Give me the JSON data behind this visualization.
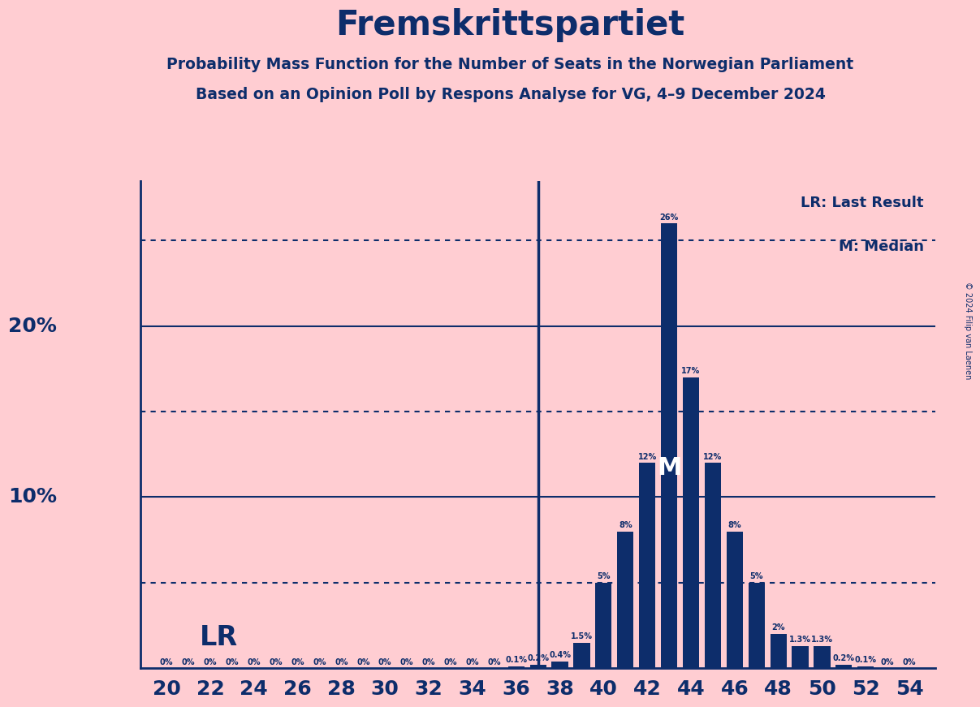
{
  "title": "Fremskrittspartiet",
  "subtitle1": "Probability Mass Function for the Number of Seats in the Norwegian Parliament",
  "subtitle2": "Based on an Opinion Poll by Respons Analyse for VG, 4–9 December 2024",
  "copyright": "© 2024 Filip van Laenen",
  "bar_color": "#0d2d6b",
  "background_color": "#ffcdd2",
  "text_color": "#0d2d6b",
  "LR_seat": 37,
  "Median_seat": 43,
  "LR_label": "LR: Last Result",
  "M_label": "M: Median",
  "LR_text": "LR",
  "M_text": "M",
  "probs_dict": {
    "20": 0,
    "21": 0,
    "22": 0,
    "23": 0,
    "24": 0,
    "25": 0,
    "26": 0,
    "27": 0,
    "28": 0,
    "29": 0,
    "30": 0,
    "31": 0,
    "32": 0,
    "33": 0,
    "34": 0,
    "35": 0,
    "36": 0.1,
    "37": 0.2,
    "38": 0.4,
    "39": 1.5,
    "40": 5,
    "41": 8,
    "42": 12,
    "43": 26,
    "44": 17,
    "45": 12,
    "46": 8,
    "47": 5,
    "48": 2,
    "49": 1.3,
    "50": 1.3,
    "51": 0.2,
    "52": 0.1,
    "53": 0,
    "54": 0
  },
  "ymax": 28.5,
  "solid_levels": [
    10,
    20
  ],
  "dotted_levels": [
    5,
    15,
    25
  ]
}
